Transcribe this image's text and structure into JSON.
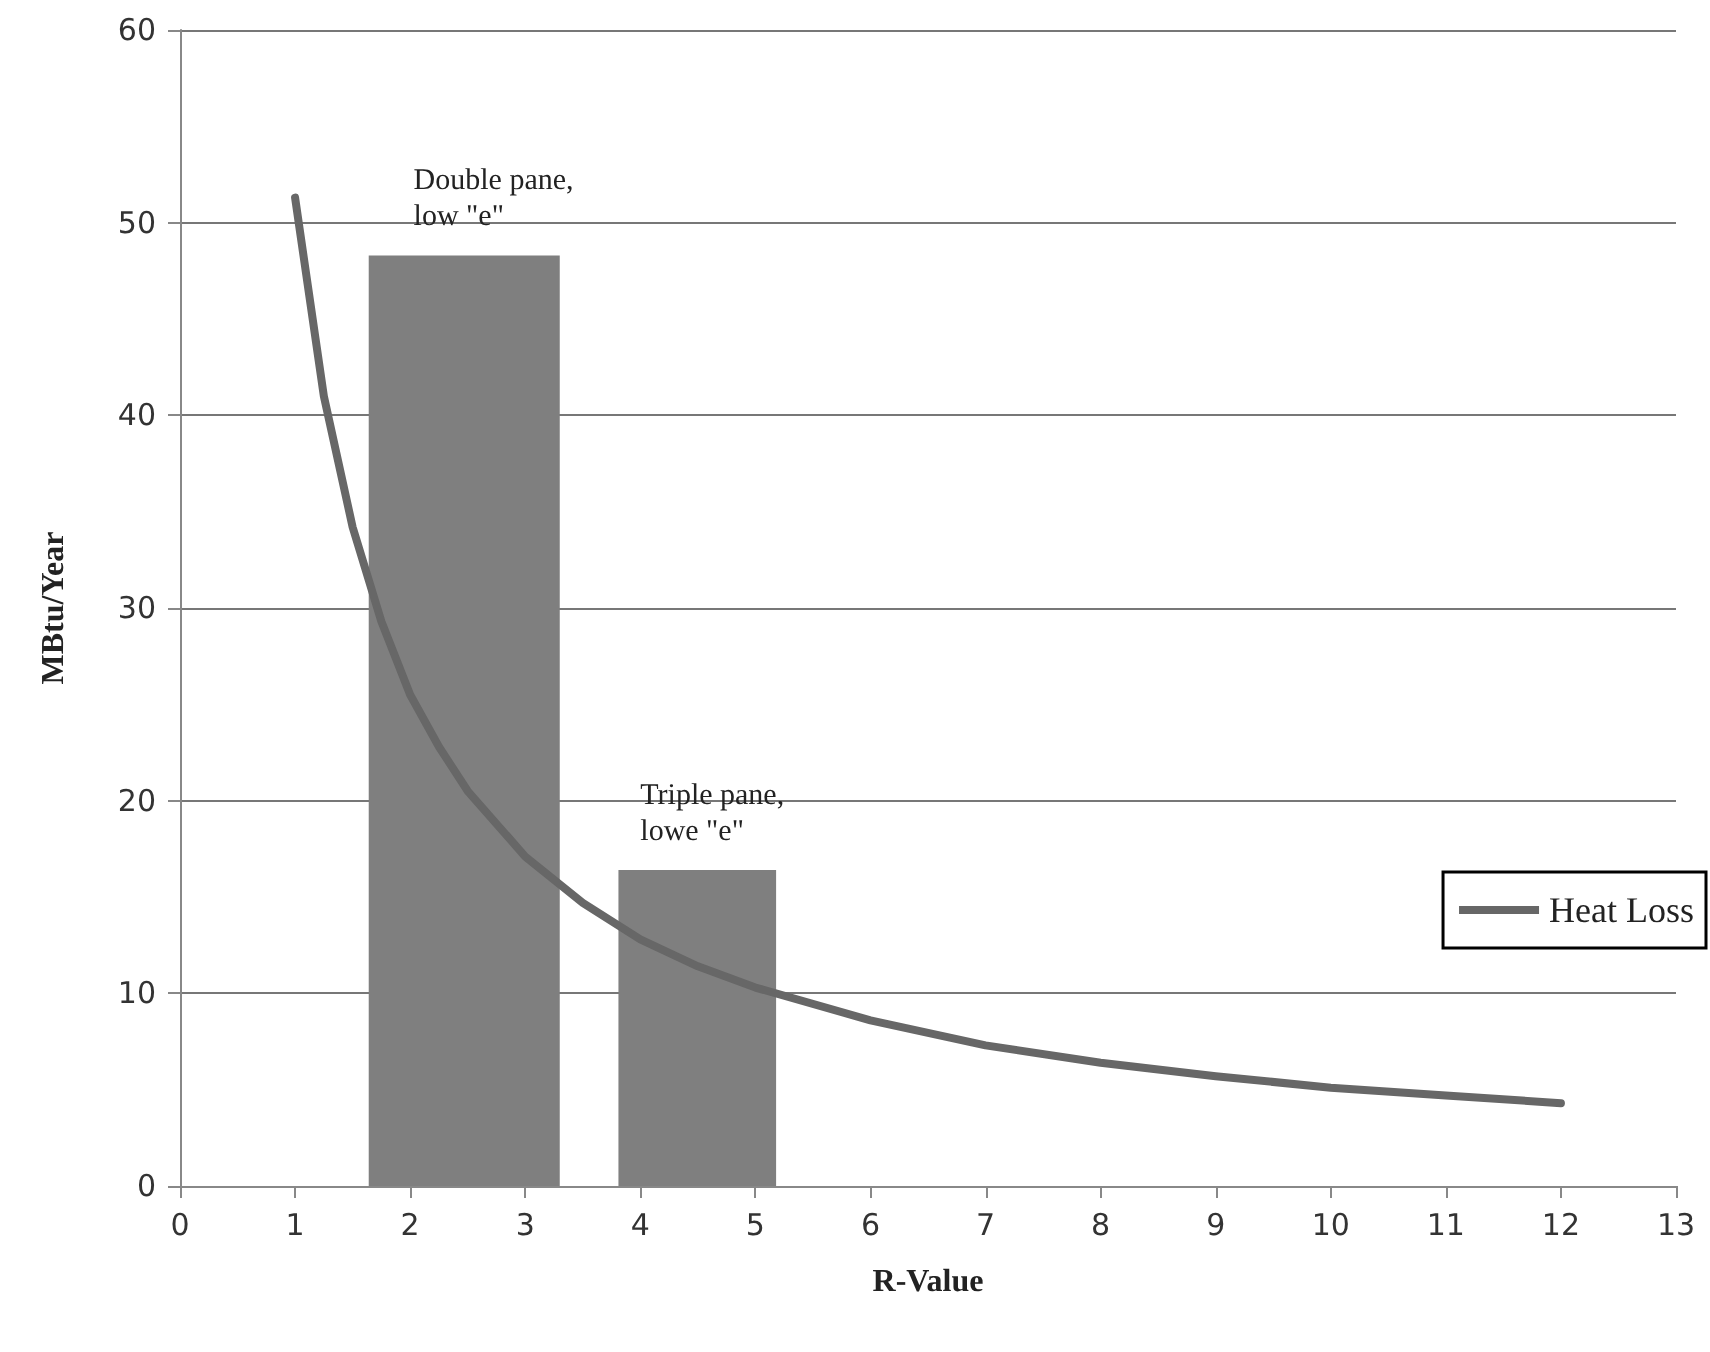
{
  "chart_data": {
    "type": "histogram",
    "xlabel": "R-Value",
    "ylabel": "MBtu/Year",
    "bins": [
      1.64,
      3.3,
      3.81,
      5.18
    ],
    "values": [
      48.3,
      null,
      16.4
    ],
    "color": "#7f7f7f",
    "series": [
      {
        "type": "line",
        "name": "Heat Loss",
        "color": "#676767",
        "x": [
          1,
          1.25,
          1.5,
          1.75,
          2,
          2.25,
          2.5,
          3,
          3.5,
          4,
          4.5,
          5,
          6,
          7,
          8,
          9,
          10,
          11,
          12
        ],
        "values": [
          51.3,
          41,
          34.2,
          29.3,
          25.5,
          22.8,
          20.5,
          17.1,
          14.7,
          12.8,
          11.4,
          10.3,
          8.6,
          7.3,
          6.4,
          5.7,
          5.1,
          4.7,
          4.3
        ]
      }
    ],
    "annotations": [
      {
        "text": "Double pane,\nlow \"e\"",
        "x": 2.03,
        "y": 48.3
      },
      {
        "text": "Triple pane,\nlowe \"e\"",
        "x": 4.0,
        "y": 16.4
      }
    ],
    "xlim": [
      0,
      13
    ],
    "xticks": [
      0,
      1,
      2,
      3,
      4,
      5,
      6,
      7,
      8,
      9,
      10,
      11,
      12,
      13
    ],
    "ylim": [
      0,
      60
    ],
    "yticks": [
      0,
      10,
      20,
      30,
      40,
      50,
      60
    ],
    "grid": "y",
    "legend": "right"
  }
}
